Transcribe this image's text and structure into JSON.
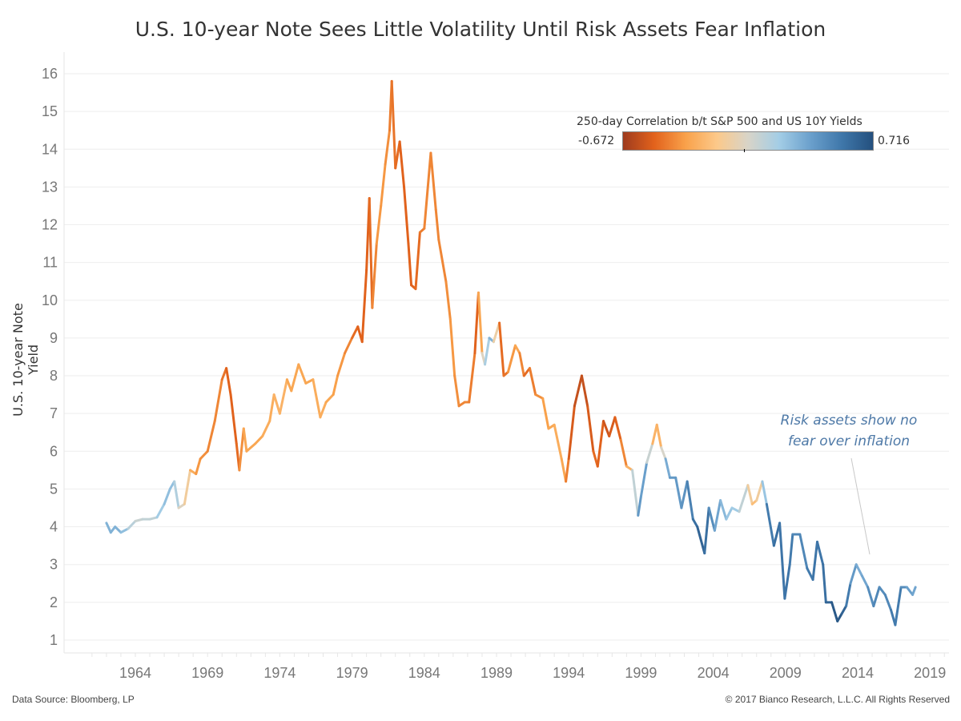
{
  "chart_data": {
    "type": "line",
    "title": "U.S. 10-year Note Sees Little Volatility Until Risk Assets Fear Inflation",
    "xlabel": "",
    "ylabel": "U.S. 10-year Note Yield",
    "xlim": [
      1960,
      2021
    ],
    "ylim": [
      0.6,
      16.5
    ],
    "x_ticks": [
      "1964",
      "1969",
      "1974",
      "1979",
      "1984",
      "1989",
      "1994",
      "1999",
      "2004",
      "2009",
      "2014",
      "2019"
    ],
    "y_ticks": [
      "1",
      "2",
      "3",
      "4",
      "5",
      "6",
      "7",
      "8",
      "9",
      "10",
      "11",
      "12",
      "13",
      "14",
      "15",
      "16"
    ],
    "grid": "horizontal",
    "color_legend": {
      "title": "250-day Correlation b/t S&P 500 and US 10Y Yields",
      "min_label": "-0.672",
      "max_label": "0.716",
      "min": -0.672,
      "max": 0.716,
      "placement": "top-right",
      "colors": [
        "#9e3b1e",
        "#e2621c",
        "#f9a14a",
        "#fcc98a",
        "#d8d4c8",
        "#a3cde6",
        "#6ba0cc",
        "#3f77aa",
        "#24507e"
      ]
    },
    "annotation": {
      "line1": "Risk assets show no",
      "line2": "fear over inflation",
      "color": "#4e79a7"
    },
    "series": {
      "x": [
        1962.0,
        1962.3,
        1962.6,
        1963.0,
        1963.5,
        1964.0,
        1964.5,
        1965.0,
        1965.5,
        1966.0,
        1966.4,
        1966.7,
        1967.0,
        1967.4,
        1967.8,
        1968.2,
        1968.5,
        1969.0,
        1969.5,
        1970.0,
        1970.3,
        1970.6,
        1971.0,
        1971.2,
        1971.5,
        1971.7,
        1972.3,
        1972.8,
        1973.3,
        1973.6,
        1974.0,
        1974.5,
        1974.8,
        1975.3,
        1975.8,
        1976.3,
        1976.8,
        1977.2,
        1977.7,
        1978.0,
        1978.5,
        1979.0,
        1979.4,
        1979.7,
        1980.0,
        1980.2,
        1980.4,
        1980.7,
        1981.0,
        1981.3,
        1981.6,
        1981.75,
        1982.0,
        1982.3,
        1982.6,
        1982.9,
        1983.1,
        1983.4,
        1983.7,
        1984.0,
        1984.45,
        1984.8,
        1985.0,
        1985.5,
        1985.8,
        1986.1,
        1986.4,
        1986.8,
        1987.1,
        1987.5,
        1987.75,
        1988.0,
        1988.2,
        1988.5,
        1988.8,
        1989.2,
        1989.5,
        1989.8,
        1990.3,
        1990.6,
        1990.9,
        1991.3,
        1991.7,
        1992.2,
        1992.6,
        1993.0,
        1993.5,
        1993.8,
        1994.0,
        1994.4,
        1994.9,
        1995.3,
        1995.7,
        1996.0,
        1996.4,
        1996.8,
        1997.2,
        1997.6,
        1998.0,
        1998.4,
        1998.8,
        1999.0,
        1999.4,
        1999.8,
        2000.1,
        2000.4,
        2000.7,
        2001.0,
        2001.4,
        2001.8,
        2002.2,
        2002.6,
        2002.9,
        2003.4,
        2003.7,
        2004.1,
        2004.5,
        2004.9,
        2005.3,
        2005.8,
        2006.4,
        2006.7,
        2007.0,
        2007.4,
        2007.7,
        2008.2,
        2008.6,
        2008.95,
        2009.3,
        2009.5,
        2010.0,
        2010.5,
        2010.9,
        2011.2,
        2011.6,
        2011.8,
        2012.2,
        2012.6,
        2012.9,
        2013.2,
        2013.5,
        2013.9,
        2014.3,
        2014.7,
        2015.1,
        2015.5,
        2015.9,
        2016.3,
        2016.6,
        2017.0,
        2017.4,
        2017.8,
        2018.0
      ],
      "yield": [
        4.1,
        3.85,
        4.0,
        3.85,
        3.95,
        4.15,
        4.2,
        4.2,
        4.25,
        4.6,
        5.0,
        5.2,
        4.5,
        4.6,
        5.5,
        5.4,
        5.8,
        6.0,
        6.8,
        7.9,
        8.2,
        7.5,
        6.2,
        5.5,
        6.6,
        6.0,
        6.2,
        6.4,
        6.8,
        7.5,
        7.0,
        7.9,
        7.6,
        8.3,
        7.8,
        7.9,
        6.9,
        7.3,
        7.5,
        8.0,
        8.6,
        9.0,
        9.3,
        8.9,
        10.8,
        12.7,
        9.8,
        11.5,
        12.5,
        13.6,
        14.5,
        15.8,
        13.5,
        14.2,
        13.0,
        11.5,
        10.4,
        10.3,
        11.8,
        11.9,
        13.9,
        12.4,
        11.6,
        10.5,
        9.5,
        8.0,
        7.2,
        7.3,
        7.3,
        8.6,
        10.2,
        8.6,
        8.3,
        9.0,
        8.9,
        9.4,
        8.0,
        8.1,
        8.8,
        8.6,
        8.0,
        8.2,
        7.5,
        7.4,
        6.6,
        6.7,
        5.8,
        5.2,
        5.8,
        7.2,
        8.0,
        7.2,
        6.0,
        5.6,
        6.8,
        6.4,
        6.9,
        6.3,
        5.6,
        5.5,
        4.3,
        4.8,
        5.7,
        6.2,
        6.7,
        6.1,
        5.8,
        5.3,
        5.3,
        4.5,
        5.2,
        4.2,
        4.0,
        3.3,
        4.5,
        3.9,
        4.7,
        4.2,
        4.5,
        4.4,
        5.1,
        4.6,
        4.7,
        5.2,
        4.6,
        3.5,
        4.1,
        2.1,
        3.0,
        3.8,
        3.8,
        2.9,
        2.6,
        3.6,
        3.0,
        2.0,
        2.0,
        1.5,
        1.7,
        1.9,
        2.5,
        3.0,
        2.7,
        2.4,
        1.9,
        2.4,
        2.2,
        1.8,
        1.4,
        2.4,
        2.4,
        2.2,
        2.4
      ],
      "correlation": [
        0.3,
        0.3,
        0.3,
        0.3,
        0.2,
        0.05,
        0.1,
        0.1,
        0.1,
        0.3,
        0.2,
        0.3,
        0.0,
        0.0,
        -0.2,
        -0.35,
        -0.35,
        -0.4,
        -0.4,
        -0.4,
        -0.5,
        -0.5,
        -0.5,
        -0.45,
        -0.3,
        -0.3,
        -0.3,
        -0.3,
        -0.25,
        -0.3,
        -0.2,
        -0.3,
        -0.3,
        -0.3,
        -0.3,
        -0.3,
        -0.25,
        -0.3,
        -0.3,
        -0.35,
        -0.35,
        -0.45,
        -0.5,
        -0.5,
        -0.5,
        -0.5,
        -0.45,
        -0.35,
        -0.35,
        -0.35,
        -0.4,
        -0.45,
        -0.45,
        -0.5,
        -0.5,
        -0.5,
        -0.5,
        -0.5,
        -0.45,
        -0.4,
        -0.4,
        -0.4,
        -0.4,
        -0.4,
        -0.35,
        -0.35,
        -0.4,
        -0.4,
        -0.4,
        -0.45,
        -0.55,
        -0.05,
        0.05,
        0.3,
        0.3,
        -0.45,
        -0.5,
        -0.4,
        -0.3,
        -0.3,
        -0.5,
        -0.45,
        -0.4,
        -0.35,
        -0.3,
        -0.3,
        -0.25,
        -0.35,
        -0.5,
        -0.55,
        -0.6,
        -0.55,
        -0.5,
        -0.45,
        -0.55,
        -0.55,
        -0.5,
        -0.5,
        -0.3,
        -0.2,
        0.4,
        0.4,
        0.35,
        -0.2,
        -0.3,
        -0.2,
        0.25,
        0.4,
        0.4,
        0.4,
        0.45,
        0.55,
        0.6,
        0.65,
        0.5,
        0.4,
        0.3,
        0.25,
        0.2,
        0.2,
        0.0,
        -0.2,
        -0.2,
        0.0,
        0.45,
        0.6,
        0.55,
        0.55,
        0.55,
        0.5,
        0.45,
        0.5,
        0.55,
        0.55,
        0.55,
        0.6,
        0.65,
        0.7,
        0.65,
        0.6,
        0.45,
        0.35,
        0.3,
        0.4,
        0.5,
        0.45,
        0.45,
        0.5,
        0.55,
        0.5,
        0.4,
        0.35,
        0.35
      ]
    }
  },
  "footer": {
    "source": "Data Source: Bloomberg, LP",
    "copyright": "© 2017 Bianco Research, L.L.C. All Rights Reserved"
  }
}
